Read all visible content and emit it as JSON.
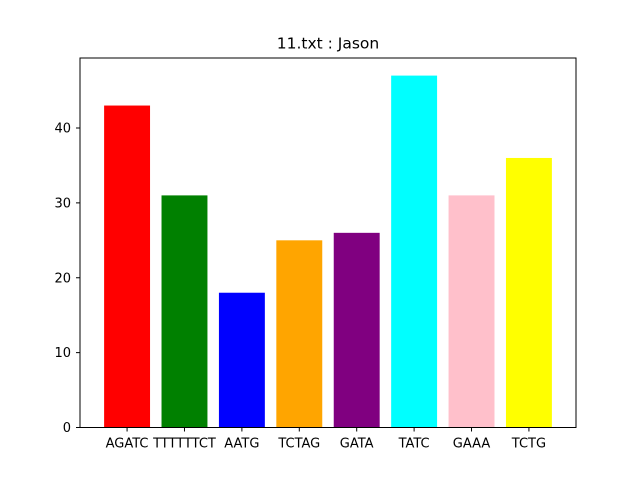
{
  "chart_data": {
    "type": "bar",
    "title": "11.txt : Jason",
    "xlabel": "",
    "ylabel": "",
    "categories": [
      "AGATC",
      "TTTTTTCT",
      "AATG",
      "TCTAG",
      "GATA",
      "TATC",
      "GAAA",
      "TCTG"
    ],
    "values": [
      43,
      31,
      18,
      25,
      26,
      47,
      31,
      36
    ],
    "colors": [
      "#ff0000",
      "#008000",
      "#0000ff",
      "#ffa500",
      "#800080",
      "#00ffff",
      "#ffc0cb",
      "#ffff00"
    ],
    "ylim": [
      0,
      49.35
    ],
    "yticks": [
      0,
      10,
      20,
      30,
      40
    ],
    "grid": false,
    "legend": "none"
  }
}
